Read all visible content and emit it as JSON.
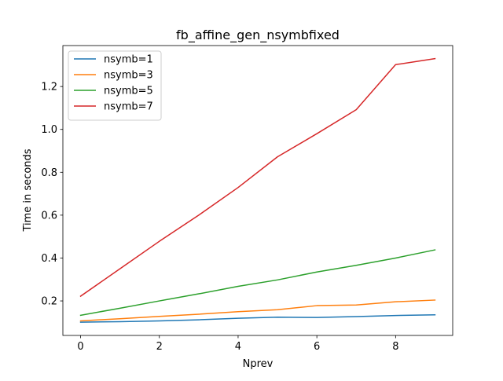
{
  "chart_data": {
    "type": "line",
    "title": "fb_affine_gen_nsymbfixed",
    "xlabel": "Nprev",
    "ylabel": "Time in seconds",
    "x": [
      0,
      1,
      2,
      3,
      4,
      5,
      6,
      7,
      8,
      9
    ],
    "xlim": [
      -0.45,
      9.45
    ],
    "ylim": [
      0.039,
      1.391
    ],
    "xticks": [
      0,
      2,
      4,
      6,
      8
    ],
    "xtick_labels": [
      "0",
      "2",
      "4",
      "6",
      "8"
    ],
    "yticks": [
      0.2,
      0.4,
      0.6,
      0.8,
      1.0,
      1.2
    ],
    "ytick_labels": [
      "0.2",
      "0.4",
      "0.6",
      "0.8",
      "1.0",
      "1.2"
    ],
    "grid": false,
    "legend_position": "top-left",
    "series": [
      {
        "name": "nsymb=1",
        "color": "#1f77b4",
        "values": [
          0.101,
          0.103,
          0.107,
          0.112,
          0.119,
          0.124,
          0.123,
          0.127,
          0.132,
          0.135
        ]
      },
      {
        "name": "nsymb=3",
        "color": "#ff7f0e",
        "values": [
          0.107,
          0.117,
          0.128,
          0.138,
          0.15,
          0.159,
          0.178,
          0.181,
          0.196,
          0.204
        ]
      },
      {
        "name": "nsymb=5",
        "color": "#2ca02c",
        "values": [
          0.133,
          0.166,
          0.2,
          0.233,
          0.268,
          0.298,
          0.335,
          0.366,
          0.4,
          0.438
        ]
      },
      {
        "name": "nsymb=7",
        "color": "#d62728",
        "values": [
          0.222,
          0.35,
          0.478,
          0.6,
          0.729,
          0.872,
          0.98,
          1.092,
          1.302,
          1.33
        ]
      }
    ]
  }
}
